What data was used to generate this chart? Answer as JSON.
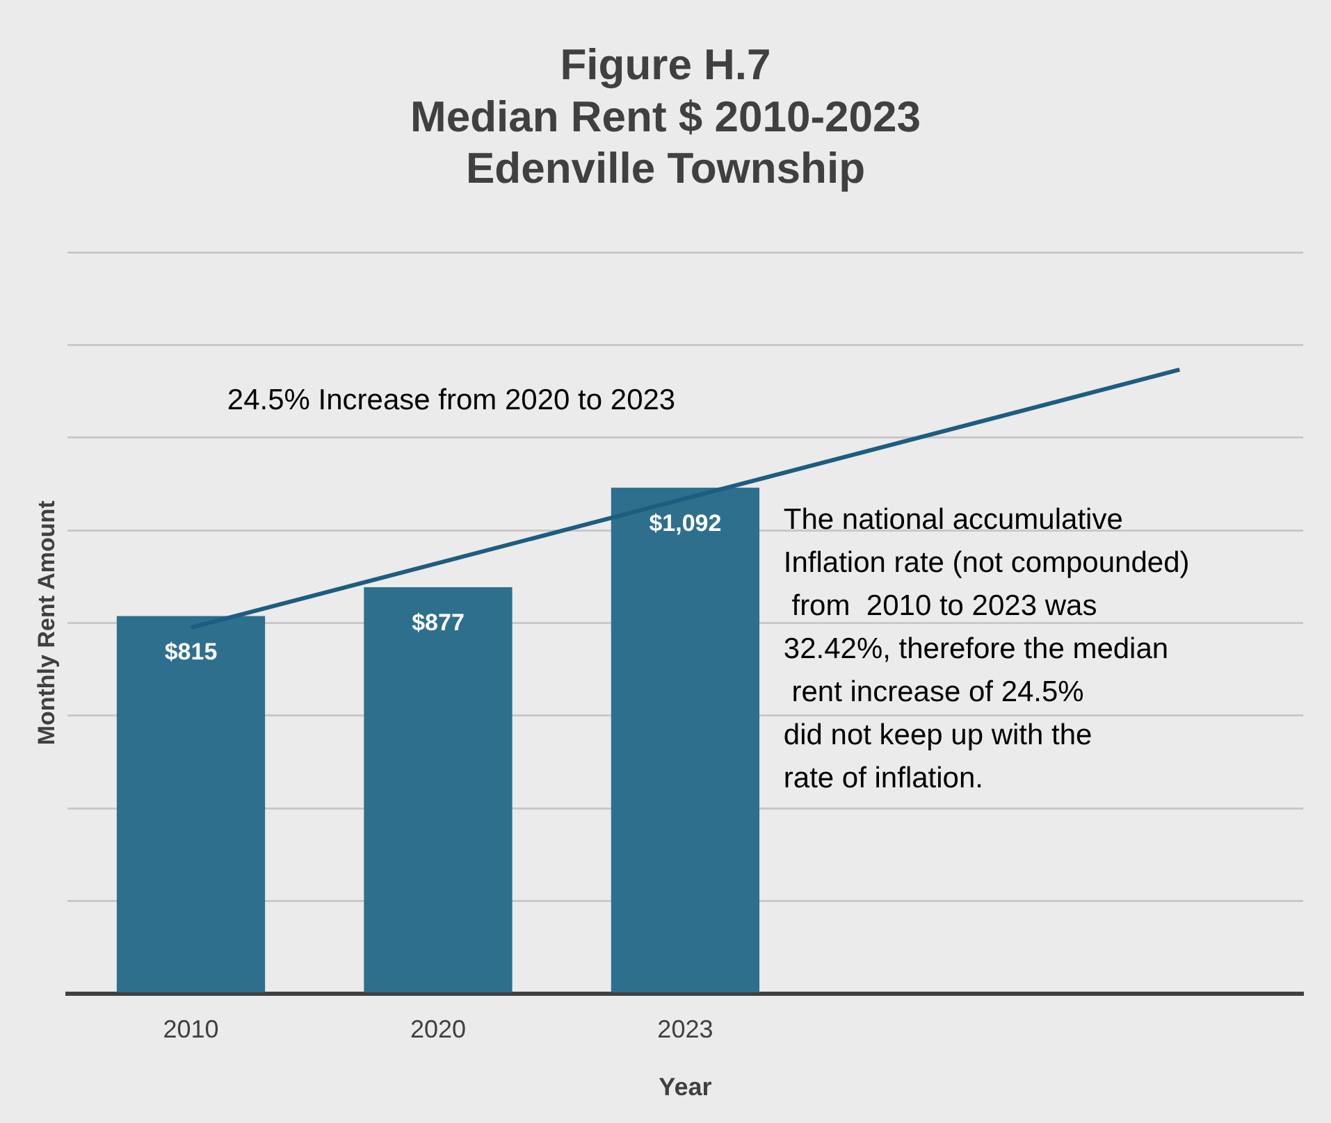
{
  "chart_data": {
    "type": "bar",
    "title": "Figure H.7\nMedian Rent $ 2010-2023\nEdenville Township",
    "xlabel": "Year",
    "ylabel": "Monthly Rent Amount",
    "categories": [
      "2010",
      "2020",
      "2023",
      null,
      null
    ],
    "series": [
      {
        "color": "#2e6f8e",
        "values": [
          815,
          877,
          1092,
          null,
          null
        ],
        "value_labels": [
          "$815",
          "$877",
          "$1,092",
          null,
          null
        ]
      },
      {
        "type": "line",
        "color": "#1d5d80",
        "values": [
          790,
          null,
          null,
          null,
          1347
        ],
        "marker": "none"
      }
    ],
    "ylim": [
      0,
      1600
    ],
    "yticks": [
      {
        "value": 0,
        "label": null
      },
      {
        "value": 200,
        "label": null
      },
      {
        "value": 400,
        "label": null
      },
      {
        "value": 600,
        "label": null
      },
      {
        "value": 800,
        "label": null
      },
      {
        "value": 1000,
        "label": null
      },
      {
        "value": 1200,
        "label": null
      },
      {
        "value": 1400,
        "label": null
      },
      {
        "value": 1600,
        "label": null
      }
    ],
    "tick_labels": "x",
    "grid": "y",
    "legend": false,
    "annotations": [
      "24.5% Increase from 2020 to 2023",
      "The national accumulative\nInflation rate (not compounded)\n from  2010 to 2023 was\n32.42%, therefore the median\n rent increase of 24.5%\ndid not keep up with the\nrate of inflation."
    ]
  }
}
